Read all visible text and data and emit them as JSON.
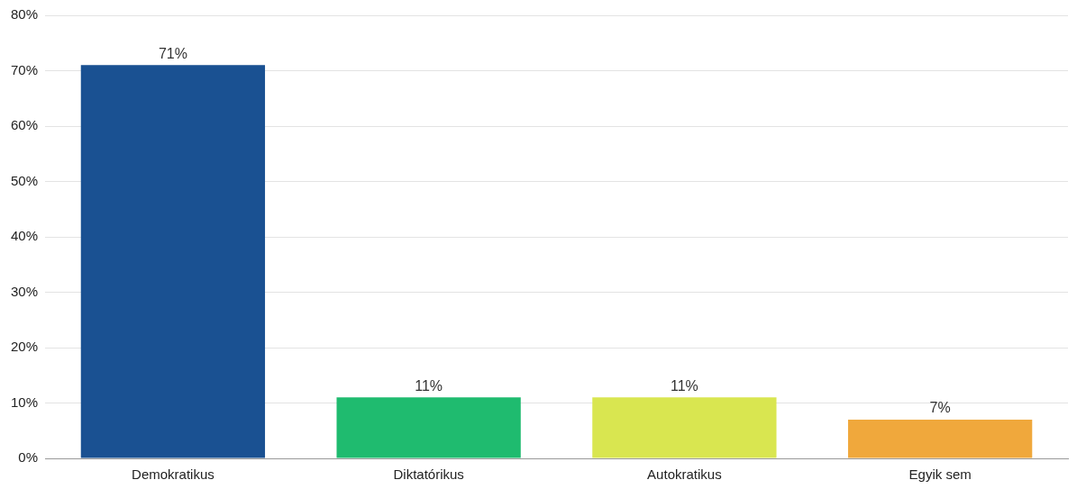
{
  "chart_data": {
    "type": "bar",
    "categories": [
      "Demokratikus",
      "Diktatórikus",
      "Autokratikus",
      "Egyik sem"
    ],
    "values": [
      71,
      11,
      11,
      7
    ],
    "colors": [
      "#1a5192",
      "#1fbb6f",
      "#d9e650",
      "#f0a83c"
    ],
    "value_labels": [
      "71%",
      "11%",
      "11%",
      "7%"
    ],
    "ylim": [
      0,
      80
    ],
    "yticks": [
      {
        "value": 0,
        "label": "0%"
      },
      {
        "value": 10,
        "label": "10%"
      },
      {
        "value": 20,
        "label": "20%"
      },
      {
        "value": 30,
        "label": "30%"
      },
      {
        "value": 40,
        "label": "40%"
      },
      {
        "value": 50,
        "label": "50%"
      },
      {
        "value": 60,
        "label": "60%"
      },
      {
        "value": 70,
        "label": "70%"
      },
      {
        "value": 80,
        "label": "80%"
      }
    ],
    "grid": "y",
    "legend": false
  }
}
